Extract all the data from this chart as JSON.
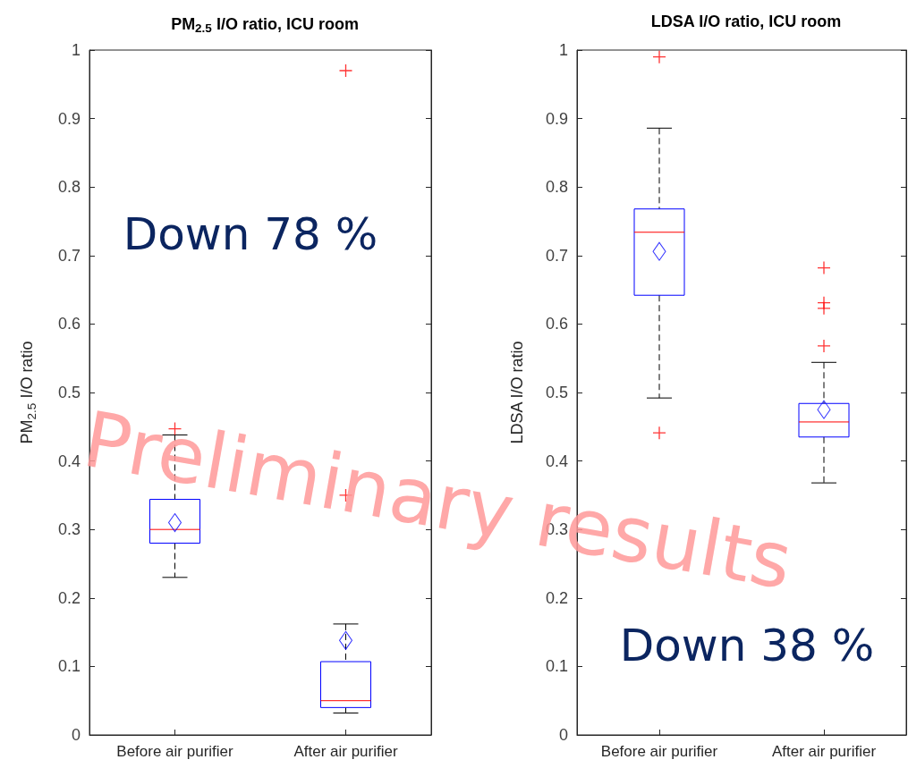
{
  "chart_data": [
    {
      "type": "box",
      "title": "PM$_{2.5}$ I/O ratio, ICU room",
      "ylabel": "PM$_{2.5}$ I/O ratio",
      "categories": [
        "Before air purifier",
        "After air purifier"
      ],
      "boxes": [
        {
          "low": 0.23,
          "q1": 0.28,
          "median": 0.3,
          "q3": 0.344,
          "high": 0.438,
          "mean": 0.31,
          "outliers": [
            0.447
          ]
        },
        {
          "low": 0.032,
          "q1": 0.04,
          "median": 0.05,
          "q3": 0.107,
          "high": 0.162,
          "mean": 0.138,
          "outliers": [
            0.35,
            0.97
          ]
        }
      ],
      "ylim": [
        0,
        1
      ],
      "yticks": [
        0,
        0.1,
        0.2,
        0.3,
        0.4,
        0.5,
        0.6,
        0.7,
        0.8,
        0.9,
        1
      ],
      "grid": false,
      "annotations": [
        "Down 78 %",
        "Preliminary results"
      ]
    },
    {
      "type": "box",
      "title": "LDSA I/O ratio, ICU room",
      "ylabel": "LDSA I/O ratio",
      "categories": [
        "Before air purifier",
        "After air purifier"
      ],
      "boxes": [
        {
          "low": 0.492,
          "q1": 0.642,
          "median": 0.734,
          "q3": 0.768,
          "high": 0.886,
          "mean": 0.706,
          "outliers": [
            0.99,
            0.441
          ]
        },
        {
          "low": 0.368,
          "q1": 0.435,
          "median": 0.457,
          "q3": 0.484,
          "high": 0.544,
          "mean": 0.475,
          "outliers": [
            0.682,
            0.631,
            0.623,
            0.568
          ]
        }
      ],
      "ylim": [
        0,
        1
      ],
      "yticks": [
        0,
        0.1,
        0.2,
        0.3,
        0.4,
        0.5,
        0.6,
        0.7,
        0.8,
        0.9,
        1
      ],
      "grid": false,
      "annotations": [
        "Down 38 %"
      ]
    }
  ]
}
